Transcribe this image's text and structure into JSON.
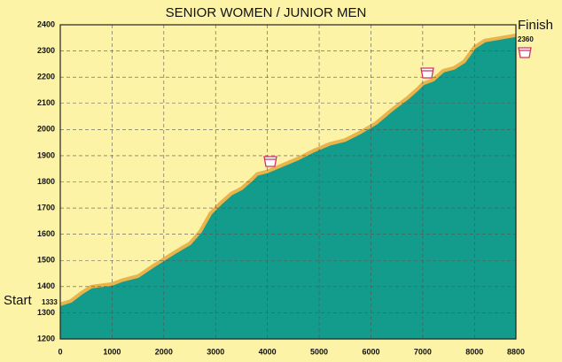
{
  "chart_data": {
    "type": "area",
    "title": "SENIOR WOMEN / JUNIOR MEN",
    "start_label": "Start",
    "finish_label": "Finish",
    "start_value": 1333,
    "finish_value": 2360,
    "x": [
      0,
      200,
      400,
      600,
      800,
      1000,
      1200,
      1500,
      1800,
      2000,
      2200,
      2500,
      2700,
      2900,
      3100,
      3300,
      3500,
      3700,
      3800,
      4000,
      4300,
      4600,
      4900,
      5200,
      5500,
      5800,
      6100,
      6400,
      6700,
      6900,
      7000,
      7200,
      7400,
      7600,
      7800,
      8000,
      8200,
      8500,
      8800
    ],
    "values": [
      1333,
      1345,
      1375,
      1400,
      1405,
      1410,
      1425,
      1440,
      1480,
      1505,
      1530,
      1565,
      1610,
      1680,
      1720,
      1755,
      1775,
      1810,
      1830,
      1840,
      1865,
      1890,
      1920,
      1945,
      1960,
      1990,
      2025,
      2075,
      2120,
      2155,
      2175,
      2190,
      2225,
      2235,
      2260,
      2315,
      2340,
      2350,
      2360
    ],
    "fill_color": "#139b8c",
    "line_color": "#e9b44c",
    "xlim": [
      0,
      8800
    ],
    "xticks": [
      0,
      1000,
      2000,
      3000,
      4000,
      5000,
      6000,
      7000,
      8000,
      8800
    ],
    "ylim": [
      1200,
      2400
    ],
    "yticks": [
      1200,
      1300,
      1400,
      1500,
      1600,
      1700,
      1800,
      1900,
      2000,
      2100,
      2200,
      2300,
      2400
    ],
    "grid": true
  }
}
